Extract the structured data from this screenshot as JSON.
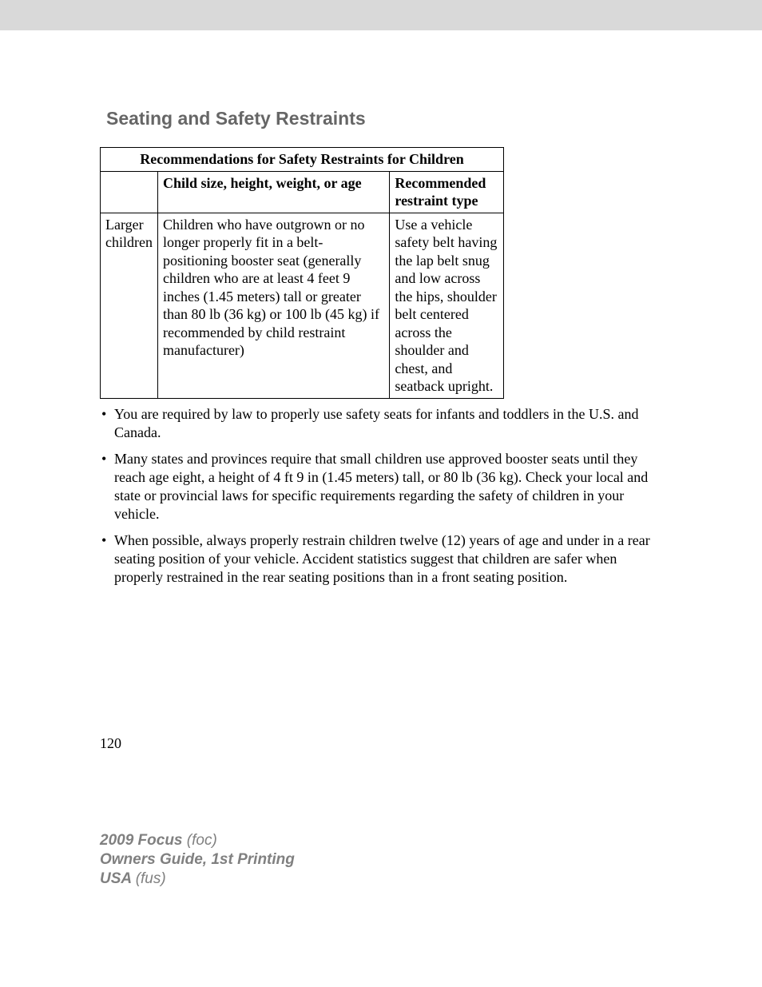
{
  "section_title": "Seating and Safety Restraints",
  "table": {
    "title": "Recommendations for Safety Restraints for Children",
    "columns": {
      "c1": "",
      "c2": "Child size, height, weight, or age",
      "c3": "Recommended restraint type"
    },
    "row": {
      "c1": "Larger children",
      "c2": "Children who have outgrown or no longer properly fit in a belt-positioning booster seat (generally children who are at least 4 feet 9 inches (1.45 meters) tall or greater than 80 lb (36 kg) or 100 lb (45 kg) if recommended by child restraint manufacturer)",
      "c3": "Use a vehicle safety belt having the lap belt snug and low across the hips, shoulder belt centered across the shoulder and chest, and seatback upright."
    }
  },
  "bullets": {
    "b1": "You are required by law to properly use safety seats for infants and toddlers in the U.S. and Canada.",
    "b2": "Many states and provinces require that small children use approved booster seats until they reach age eight, a height of 4 ft 9 in (1.45 meters) tall, or 80 lb (36 kg). Check your local and state or provincial laws for specific requirements regarding the safety of children in your vehicle.",
    "b3": "When possible, always properly restrain children twelve (12) years of age and under in a rear seating position of your vehicle. Accident statistics suggest that children are safer when properly restrained in the rear seating positions than in a front seating position."
  },
  "page_number": "120",
  "footer": {
    "line1a": "2009 Focus ",
    "line1b": "(foc)",
    "line2": "Owners Guide, 1st Printing",
    "line3a": "USA ",
    "line3b": "(fus)"
  }
}
